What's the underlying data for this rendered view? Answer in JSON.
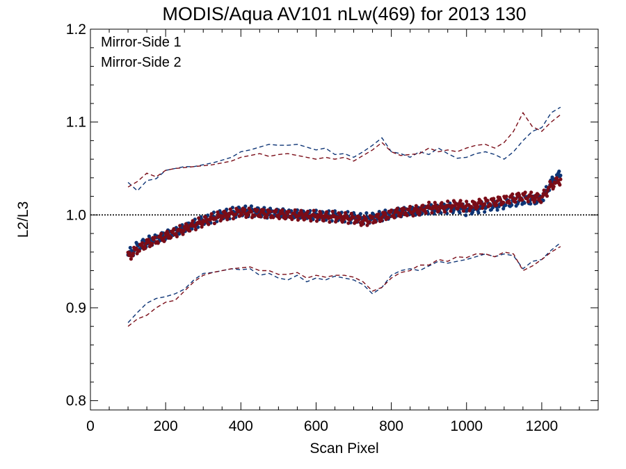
{
  "chart_data": {
    "type": "scatter",
    "title": "MODIS/Aqua AV101 nLw(469) for 2013 130",
    "xlabel": "Scan Pixel",
    "ylabel": "L2/L3",
    "xlim": [
      0,
      1350
    ],
    "ylim": [
      0.79,
      1.2
    ],
    "x_ticks": [
      0,
      200,
      400,
      600,
      800,
      1000,
      1200
    ],
    "x_tick_labels": [
      "0",
      "200",
      "400",
      "600",
      "800",
      "1000",
      "1200"
    ],
    "y_ticks": [
      0.8,
      0.9,
      1.0,
      1.1,
      1.2
    ],
    "y_tick_labels": [
      "0.8",
      "0.9",
      "1.0",
      "1.1",
      "1.2"
    ],
    "reference_line": 1.0,
    "legend_position": "top-left",
    "colors": {
      "ms1": "#0d3475",
      "ms2": "#7a0c17"
    },
    "series": [
      {
        "name": "Mirror-Side 1",
        "color": "#0d3475",
        "mean": {
          "x": [
            100,
            125,
            150,
            175,
            200,
            225,
            250,
            275,
            300,
            325,
            350,
            375,
            400,
            425,
            450,
            475,
            500,
            525,
            550,
            575,
            600,
            625,
            650,
            675,
            700,
            725,
            750,
            775,
            800,
            825,
            850,
            875,
            900,
            925,
            950,
            975,
            1000,
            1025,
            1050,
            1075,
            1100,
            1125,
            1150,
            1175,
            1200,
            1225,
            1250
          ],
          "y": [
            0.957,
            0.966,
            0.971,
            0.974,
            0.978,
            0.982,
            0.986,
            0.99,
            0.994,
            0.997,
            1.0,
            1.002,
            1.004,
            1.004,
            1.003,
            1.002,
            1.002,
            1.001,
            1.001,
            1.0,
            1.0,
            0.999,
            0.999,
            0.998,
            0.997,
            0.996,
            0.997,
            0.999,
            1.001,
            1.003,
            1.004,
            1.004,
            1.006,
            1.006,
            1.007,
            1.008,
            1.005,
            1.007,
            1.009,
            1.01,
            1.012,
            1.014,
            1.016,
            1.016,
            1.017,
            1.035,
            1.044
          ]
        },
        "upper": {
          "x": [
            100,
            125,
            150,
            175,
            200,
            225,
            250,
            275,
            300,
            325,
            350,
            375,
            400,
            425,
            450,
            475,
            500,
            525,
            550,
            575,
            600,
            625,
            650,
            675,
            700,
            725,
            750,
            775,
            800,
            825,
            850,
            875,
            900,
            925,
            950,
            975,
            1000,
            1025,
            1050,
            1075,
            1100,
            1125,
            1150,
            1175,
            1200,
            1225,
            1250
          ],
          "y": [
            1.035,
            1.026,
            1.037,
            1.039,
            1.048,
            1.05,
            1.052,
            1.052,
            1.054,
            1.056,
            1.059,
            1.062,
            1.068,
            1.07,
            1.073,
            1.076,
            1.075,
            1.075,
            1.076,
            1.073,
            1.07,
            1.072,
            1.065,
            1.066,
            1.062,
            1.068,
            1.075,
            1.083,
            1.068,
            1.066,
            1.062,
            1.068,
            1.065,
            1.072,
            1.066,
            1.061,
            1.062,
            1.066,
            1.068,
            1.065,
            1.06,
            1.068,
            1.08,
            1.09,
            1.094,
            1.11,
            1.116
          ]
        },
        "lower": {
          "x": [
            100,
            125,
            150,
            175,
            200,
            225,
            250,
            275,
            300,
            325,
            350,
            375,
            400,
            425,
            450,
            475,
            500,
            525,
            550,
            575,
            600,
            625,
            650,
            675,
            700,
            725,
            750,
            775,
            800,
            825,
            850,
            875,
            900,
            925,
            950,
            975,
            1000,
            1025,
            1050,
            1075,
            1100,
            1125,
            1150,
            1175,
            1200,
            1225,
            1250
          ],
          "y": [
            0.884,
            0.895,
            0.905,
            0.91,
            0.912,
            0.915,
            0.92,
            0.93,
            0.937,
            0.938,
            0.94,
            0.942,
            0.941,
            0.942,
            0.935,
            0.937,
            0.932,
            0.93,
            0.935,
            0.928,
            0.932,
            0.93,
            0.934,
            0.932,
            0.93,
            0.925,
            0.915,
            0.922,
            0.935,
            0.94,
            0.942,
            0.94,
            0.945,
            0.95,
            0.948,
            0.95,
            0.952,
            0.955,
            0.958,
            0.955,
            0.958,
            0.956,
            0.942,
            0.95,
            0.952,
            0.962,
            0.97
          ]
        }
      },
      {
        "name": "Mirror-Side 2",
        "color": "#7a0c17",
        "mean": {
          "x": [
            100,
            125,
            150,
            175,
            200,
            225,
            250,
            275,
            300,
            325,
            350,
            375,
            400,
            425,
            450,
            475,
            500,
            525,
            550,
            575,
            600,
            625,
            650,
            675,
            700,
            725,
            750,
            775,
            800,
            825,
            850,
            875,
            900,
            925,
            950,
            975,
            1000,
            1025,
            1050,
            1075,
            1100,
            1125,
            1150,
            1175,
            1200,
            1225,
            1250
          ],
          "y": [
            0.955,
            0.963,
            0.969,
            0.973,
            0.977,
            0.981,
            0.985,
            0.989,
            0.993,
            0.996,
            0.999,
            1.001,
            1.003,
            1.002,
            1.002,
            1.001,
            1.001,
            1.0,
            1.0,
            0.999,
            0.999,
            0.998,
            0.998,
            0.997,
            0.996,
            0.993,
            0.995,
            0.998,
            1.001,
            1.003,
            1.004,
            1.005,
            1.008,
            1.008,
            1.009,
            1.011,
            1.009,
            1.011,
            1.013,
            1.014,
            1.016,
            1.018,
            1.02,
            1.019,
            1.018,
            1.032,
            1.038
          ]
        },
        "upper": {
          "x": [
            100,
            125,
            150,
            175,
            200,
            225,
            250,
            275,
            300,
            325,
            350,
            375,
            400,
            425,
            450,
            475,
            500,
            525,
            550,
            575,
            600,
            625,
            650,
            675,
            700,
            725,
            750,
            775,
            800,
            825,
            850,
            875,
            900,
            925,
            950,
            975,
            1000,
            1025,
            1050,
            1075,
            1100,
            1125,
            1150,
            1175,
            1200,
            1225,
            1250
          ],
          "y": [
            1.03,
            1.036,
            1.045,
            1.041,
            1.048,
            1.05,
            1.051,
            1.052,
            1.053,
            1.054,
            1.056,
            1.058,
            1.062,
            1.064,
            1.066,
            1.063,
            1.065,
            1.066,
            1.064,
            1.062,
            1.06,
            1.062,
            1.06,
            1.062,
            1.058,
            1.064,
            1.07,
            1.078,
            1.068,
            1.064,
            1.065,
            1.066,
            1.072,
            1.068,
            1.07,
            1.068,
            1.072,
            1.075,
            1.076,
            1.072,
            1.078,
            1.09,
            1.11,
            1.095,
            1.09,
            1.1,
            1.108
          ]
        },
        "lower": {
          "x": [
            100,
            125,
            150,
            175,
            200,
            225,
            250,
            275,
            300,
            325,
            350,
            375,
            400,
            425,
            450,
            475,
            500,
            525,
            550,
            575,
            600,
            625,
            650,
            675,
            700,
            725,
            750,
            775,
            800,
            825,
            850,
            875,
            900,
            925,
            950,
            975,
            1000,
            1025,
            1050,
            1075,
            1100,
            1125,
            1150,
            1175,
            1200,
            1225,
            1250
          ],
          "y": [
            0.88,
            0.888,
            0.892,
            0.9,
            0.906,
            0.908,
            0.918,
            0.928,
            0.935,
            0.938,
            0.94,
            0.942,
            0.943,
            0.944,
            0.94,
            0.94,
            0.936,
            0.936,
            0.938,
            0.932,
            0.935,
            0.933,
            0.935,
            0.935,
            0.933,
            0.928,
            0.918,
            0.922,
            0.932,
            0.938,
            0.94,
            0.946,
            0.946,
            0.952,
            0.95,
            0.955,
            0.954,
            0.958,
            0.958,
            0.955,
            0.96,
            0.958,
            0.94,
            0.945,
            0.952,
            0.96,
            0.966
          ]
        }
      }
    ]
  }
}
